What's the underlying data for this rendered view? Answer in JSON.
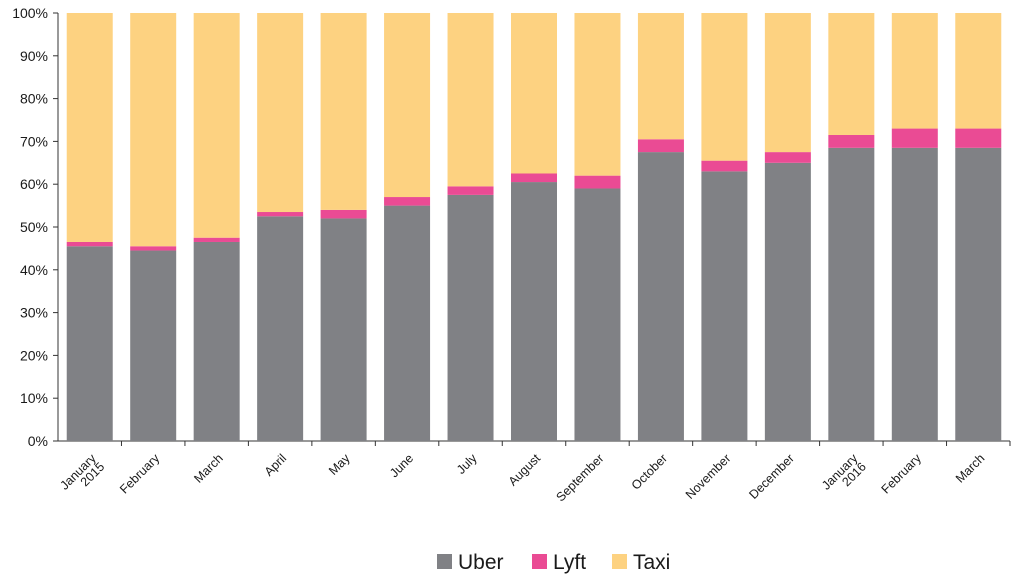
{
  "chart_data": {
    "type": "bar",
    "stacked": true,
    "percent": true,
    "categories": [
      [
        "January",
        "2015"
      ],
      [
        "February"
      ],
      [
        "March"
      ],
      [
        "April"
      ],
      [
        "May"
      ],
      [
        "June"
      ],
      [
        "July"
      ],
      [
        "August"
      ],
      [
        "September"
      ],
      [
        "October"
      ],
      [
        "November"
      ],
      [
        "December"
      ],
      [
        "January",
        "2016"
      ],
      [
        "February"
      ],
      [
        "March"
      ]
    ],
    "series": [
      {
        "name": "Uber",
        "color": "#808185",
        "values": [
          45.5,
          44.5,
          46.5,
          52.5,
          52,
          55,
          57.5,
          60.5,
          59,
          67.5,
          63,
          65,
          68.5,
          68.5,
          68.5
        ]
      },
      {
        "name": "Lyft",
        "color": "#ea4b94",
        "values": [
          1,
          1,
          1,
          1,
          2,
          2,
          2,
          2,
          3,
          3,
          2.5,
          2.5,
          3,
          4.5,
          4.5
        ]
      },
      {
        "name": "Taxi",
        "color": "#fdd281",
        "values": [
          53.5,
          54.5,
          52.5,
          46.5,
          46,
          43,
          40.5,
          37.5,
          38,
          29.5,
          34.5,
          32.5,
          28.5,
          27,
          27
        ]
      }
    ],
    "yticks": [
      "0%",
      "10%",
      "20%",
      "30%",
      "40%",
      "50%",
      "60%",
      "70%",
      "80%",
      "90%",
      "100%"
    ],
    "ylim": [
      0,
      100
    ],
    "grid": false,
    "legend": "bottom"
  }
}
